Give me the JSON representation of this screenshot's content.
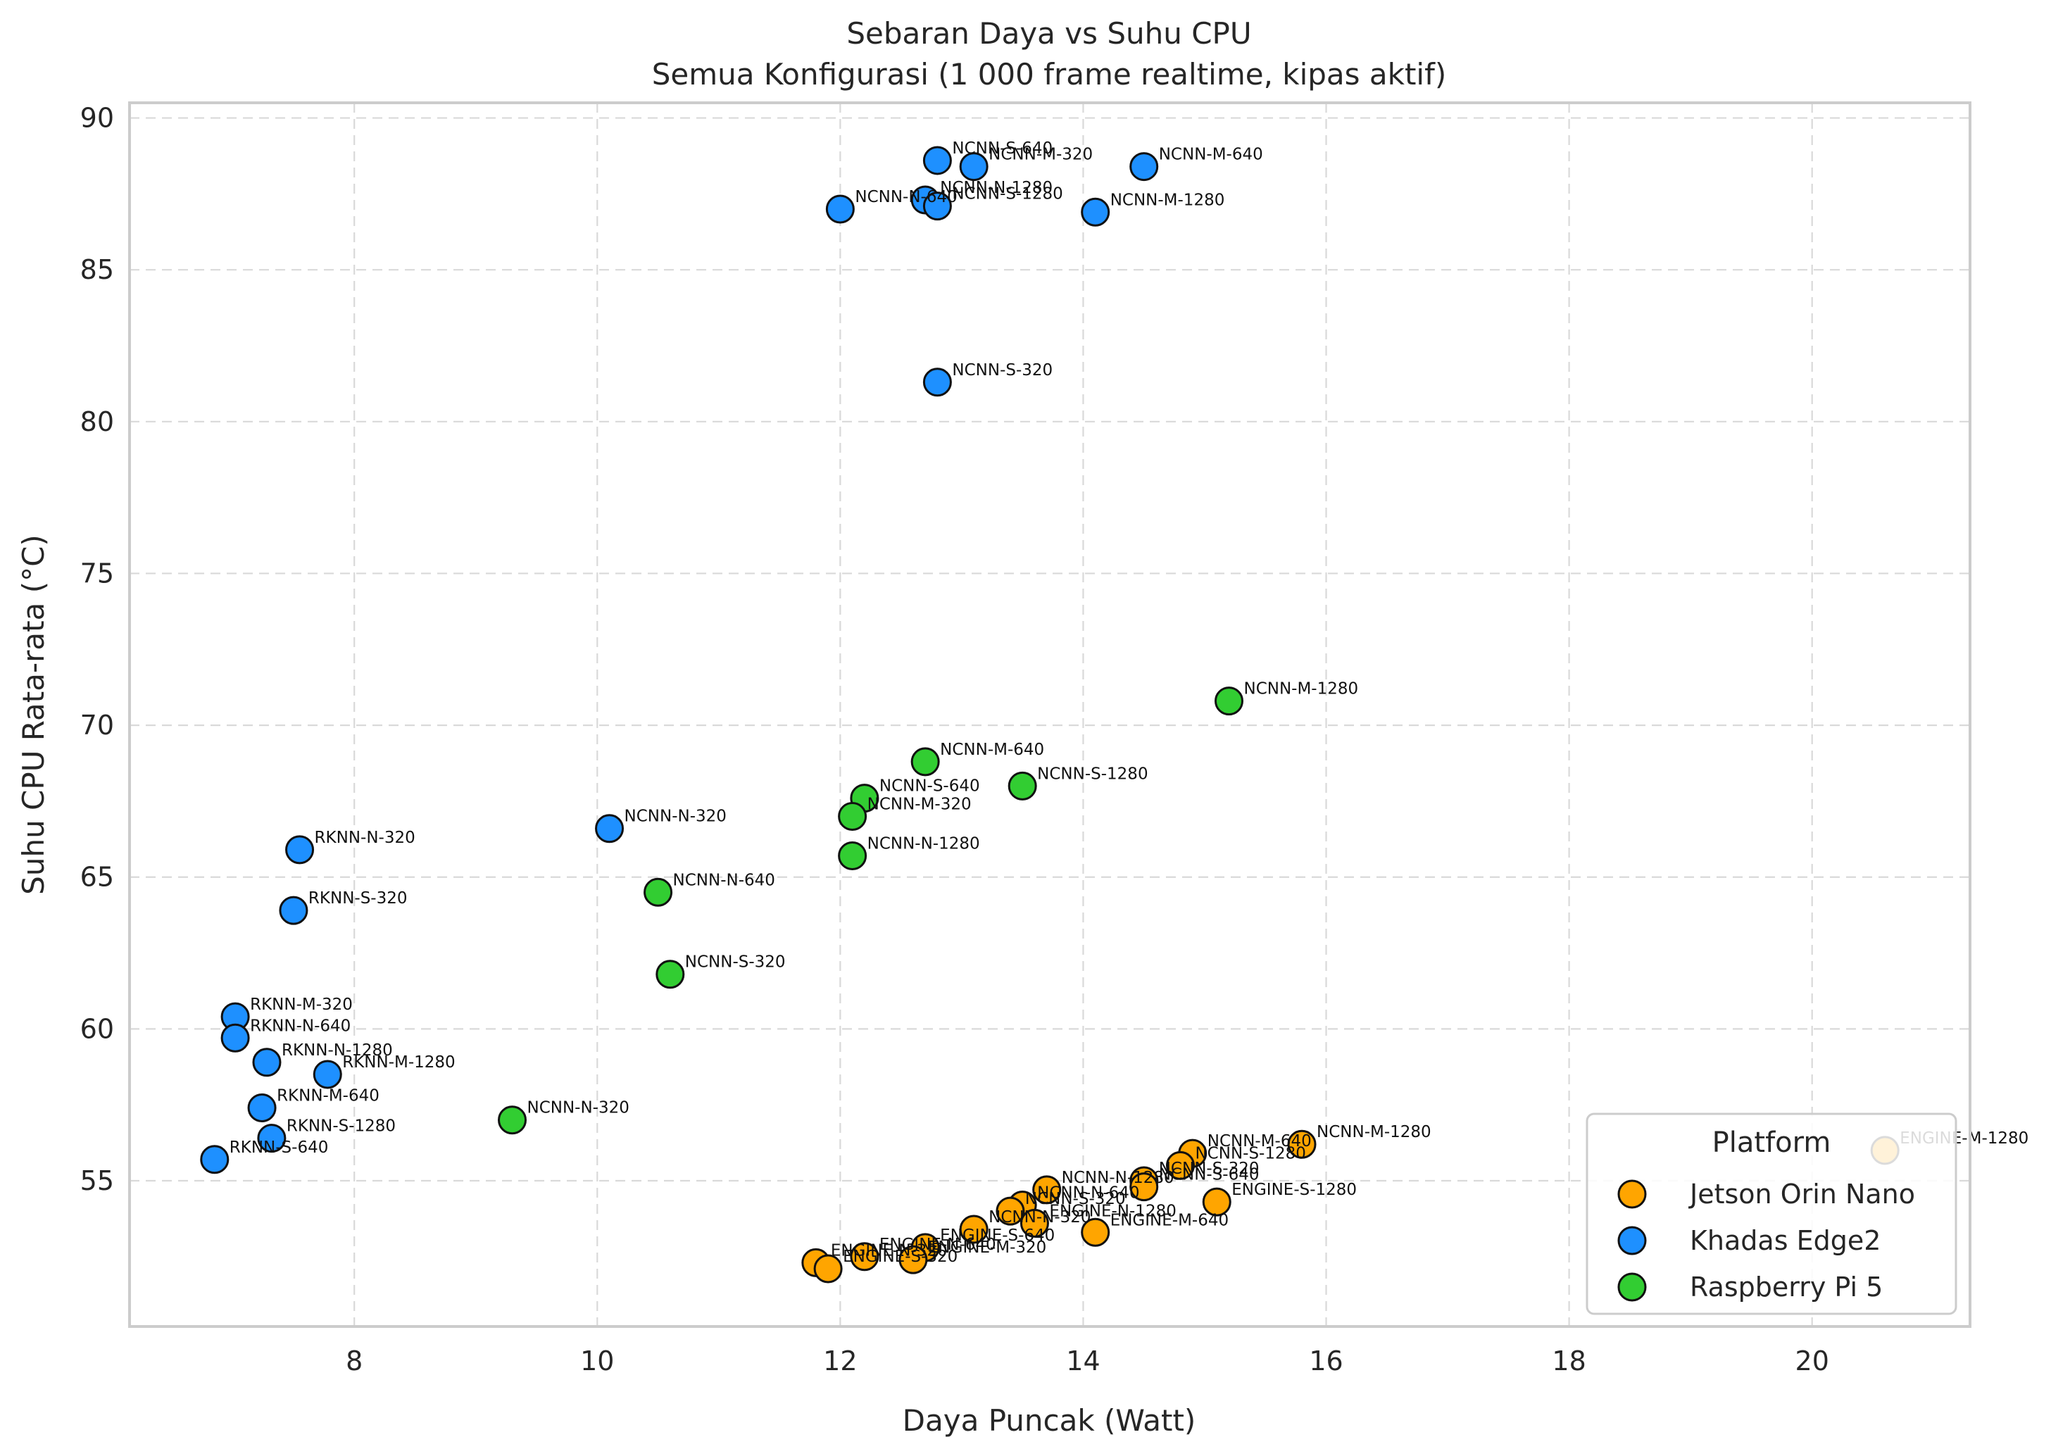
{
  "chart_data": {
    "type": "scatter",
    "title": "Sebaran Daya vs Suhu CPU",
    "subtitle": "Semua Konfigurasi (1 000 frame realtime, kipas aktif)",
    "xlabel": "Daya Puncak (Watt)",
    "ylabel": "Suhu CPU Rata-rata (°C)",
    "xlim": [
      6.15,
      21.3
    ],
    "ylim": [
      50.2,
      90.5
    ],
    "xticks": [
      8,
      10,
      12,
      14,
      16,
      18,
      20
    ],
    "yticks": [
      55,
      60,
      65,
      70,
      75,
      80,
      85,
      90
    ],
    "grid": true,
    "legend": {
      "title": "Platform",
      "placement": "lower-right"
    },
    "series": [
      {
        "name": "Jetson Orin Nano",
        "color": "#ffa500",
        "points": [
          {
            "label": "ENGINE-M-1280",
            "x": 20.6,
            "y": 56.0
          },
          {
            "label": "NCNN-M-1280",
            "x": 15.8,
            "y": 56.2
          },
          {
            "label": "NCNN-M-640",
            "x": 14.9,
            "y": 55.9
          },
          {
            "label": "NCNN-S-1280",
            "x": 14.8,
            "y": 55.5
          },
          {
            "label": "NCNN-S-320",
            "x": 14.5,
            "y": 55.0
          },
          {
            "label": "NCNN-S-640",
            "x": 14.5,
            "y": 54.8
          },
          {
            "label": "ENGINE-S-1280",
            "x": 15.1,
            "y": 54.3
          },
          {
            "label": "NCNN-N-1280",
            "x": 13.7,
            "y": 54.7
          },
          {
            "label": "NCNN-N-640",
            "x": 13.5,
            "y": 54.2
          },
          {
            "label": "NCNN-S-320",
            "x": 13.4,
            "y": 54.0
          },
          {
            "label": "ENGINE-N-1280",
            "x": 13.6,
            "y": 53.6
          },
          {
            "label": "NCNN-N-320",
            "x": 13.1,
            "y": 53.4
          },
          {
            "label": "ENGINE-M-640",
            "x": 14.1,
            "y": 53.3
          },
          {
            "label": "ENGINE-S-640",
            "x": 12.7,
            "y": 52.8
          },
          {
            "label": "ENGINE-M-320",
            "x": 12.6,
            "y": 52.4
          },
          {
            "label": "ENGINE-N-640",
            "x": 12.2,
            "y": 52.5
          },
          {
            "label": "ENGINE-N-320",
            "x": 11.8,
            "y": 52.3
          },
          {
            "label": "ENGINE-S-320",
            "x": 11.9,
            "y": 52.1
          }
        ]
      },
      {
        "name": "Khadas Edge2",
        "color": "#1e90ff",
        "points": [
          {
            "label": "NCNN-S-640",
            "x": 12.8,
            "y": 88.6
          },
          {
            "label": "NCNN-M-320",
            "x": 13.1,
            "y": 88.4
          },
          {
            "label": "NCNN-M-640",
            "x": 14.5,
            "y": 88.4
          },
          {
            "label": "NCNN-N-1280",
            "x": 12.7,
            "y": 87.3
          },
          {
            "label": "NCNN-S-1280",
            "x": 12.8,
            "y": 87.1
          },
          {
            "label": "NCNN-N-640",
            "x": 12.0,
            "y": 87.0
          },
          {
            "label": "NCNN-M-1280",
            "x": 14.1,
            "y": 86.9
          },
          {
            "label": "NCNN-S-320",
            "x": 12.8,
            "y": 81.3
          },
          {
            "label": "NCNN-N-320",
            "x": 10.1,
            "y": 66.6
          },
          {
            "label": "RKNN-N-320",
            "x": 7.55,
            "y": 65.9
          },
          {
            "label": "RKNN-S-320",
            "x": 7.5,
            "y": 63.9
          },
          {
            "label": "RKNN-M-320",
            "x": 7.02,
            "y": 60.4
          },
          {
            "label": "RKNN-N-640",
            "x": 7.02,
            "y": 59.7
          },
          {
            "label": "RKNN-N-1280",
            "x": 7.28,
            "y": 58.9
          },
          {
            "label": "RKNN-M-1280",
            "x": 7.78,
            "y": 58.5
          },
          {
            "label": "RKNN-M-640",
            "x": 7.24,
            "y": 57.4
          },
          {
            "label": "RKNN-S-1280",
            "x": 7.32,
            "y": 56.4
          },
          {
            "label": "RKNN-S-640",
            "x": 6.85,
            "y": 55.7
          }
        ]
      },
      {
        "name": "Raspberry Pi 5",
        "color": "#32cd32",
        "points": [
          {
            "label": "NCNN-M-1280",
            "x": 15.2,
            "y": 70.8
          },
          {
            "label": "NCNN-M-640",
            "x": 12.7,
            "y": 68.8
          },
          {
            "label": "NCNN-S-1280",
            "x": 13.5,
            "y": 68.0
          },
          {
            "label": "NCNN-S-640",
            "x": 12.2,
            "y": 67.6
          },
          {
            "label": "NCNN-M-320",
            "x": 12.1,
            "y": 67.0
          },
          {
            "label": "NCNN-N-1280",
            "x": 12.1,
            "y": 65.7
          },
          {
            "label": "NCNN-N-640",
            "x": 10.5,
            "y": 64.5
          },
          {
            "label": "NCNN-S-320",
            "x": 10.6,
            "y": 61.8
          },
          {
            "label": "NCNN-N-320",
            "x": 9.3,
            "y": 57.0
          }
        ]
      }
    ]
  }
}
